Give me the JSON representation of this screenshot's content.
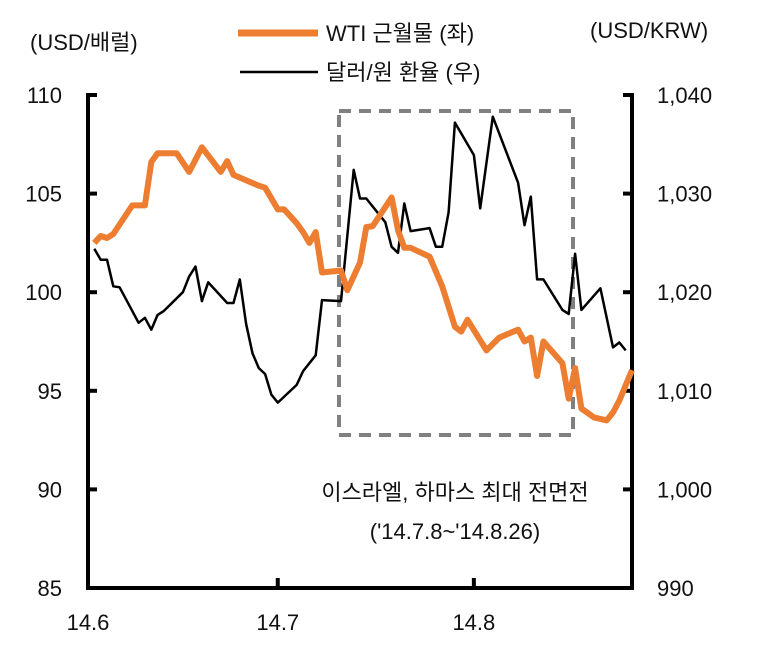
{
  "chart_data": {
    "type": "line",
    "title": "",
    "left_axis": {
      "label": "(USD/배럴)",
      "ylim": [
        85,
        110
      ],
      "ticks": [
        110,
        105,
        100,
        95,
        90,
        85
      ],
      "tick_labels": [
        "110",
        "105",
        "100",
        "95",
        "90",
        "85"
      ]
    },
    "right_axis": {
      "label": "(USD/KRW)",
      "ylim": [
        990,
        1040
      ],
      "ticks": [
        1040,
        1030,
        1020,
        1010,
        1000,
        990
      ],
      "tick_labels": [
        "1,040",
        "1,030",
        "1,020",
        "1,010",
        "1,000",
        "990"
      ]
    },
    "x_axis": {
      "xlim": [
        "2014-06-01",
        "2014-08-26"
      ],
      "ticks": [
        "2014-06-01",
        "2014-07-01",
        "2014-08-01"
      ],
      "tick_labels": [
        "14.6",
        "14.7",
        "14.8"
      ]
    },
    "grid": false,
    "legend_placement": "top-center",
    "series": [
      {
        "name": "WTI 근월물 (좌)",
        "axis": "left",
        "color": "#ED7D31",
        "x": [
          "2014-06-02",
          "2014-06-03",
          "2014-06-04",
          "2014-06-05",
          "2014-06-08",
          "2014-06-10",
          "2014-06-11",
          "2014-06-12",
          "2014-06-15",
          "2014-06-17",
          "2014-06-19",
          "2014-06-22",
          "2014-06-23",
          "2014-06-24",
          "2014-06-28",
          "2014-06-29",
          "2014-07-01",
          "2014-07-02",
          "2014-07-04",
          "2014-07-05",
          "2014-07-06",
          "2014-07-07",
          "2014-07-08",
          "2014-07-11",
          "2014-07-12",
          "2014-07-14",
          "2014-07-15",
          "2014-07-16",
          "2014-07-19",
          "2014-07-20",
          "2014-07-21",
          "2014-07-22",
          "2014-07-25",
          "2014-07-27",
          "2014-07-29",
          "2014-07-30",
          "2014-07-31",
          "2014-08-03",
          "2014-08-05",
          "2014-08-08",
          "2014-08-09",
          "2014-08-10",
          "2014-08-11",
          "2014-08-12",
          "2014-08-15",
          "2014-08-16",
          "2014-08-17",
          "2014-08-18",
          "2014-08-20",
          "2014-08-22",
          "2014-08-23",
          "2014-08-24",
          "2014-08-26"
        ],
        "values": [
          102.5,
          102.85,
          102.75,
          102.95,
          104.4,
          104.4,
          106.6,
          107.05,
          107.05,
          106.1,
          107.35,
          106.1,
          106.65,
          105.95,
          105.4,
          105.3,
          104.2,
          104.2,
          103.5,
          103.05,
          102.5,
          103.05,
          101.0,
          101.1,
          100.1,
          101.5,
          103.3,
          103.35,
          104.8,
          103.15,
          102.25,
          102.25,
          101.8,
          100.3,
          98.25,
          98.0,
          98.6,
          97.05,
          97.7,
          98.1,
          97.5,
          97.7,
          95.75,
          97.5,
          96.4,
          94.6,
          96.15,
          94.1,
          93.65,
          93.5,
          93.9,
          94.5,
          96.05
        ]
      },
      {
        "name": "달러/원 환율 (우)",
        "axis": "right",
        "color": "#000000",
        "x": [
          "2014-06-02",
          "2014-06-03",
          "2014-06-04",
          "2014-06-05",
          "2014-06-06",
          "2014-06-09",
          "2014-06-10",
          "2014-06-11",
          "2014-06-12",
          "2014-06-13",
          "2014-06-16",
          "2014-06-17",
          "2014-06-18",
          "2014-06-19",
          "2014-06-20",
          "2014-06-23",
          "2014-06-24",
          "2014-06-25",
          "2014-06-26",
          "2014-06-27",
          "2014-06-28",
          "2014-06-29",
          "2014-06-30",
          "2014-07-01",
          "2014-07-04",
          "2014-07-05",
          "2014-07-06",
          "2014-07-07",
          "2014-07-08",
          "2014-07-11",
          "2014-07-13",
          "2014-07-14",
          "2014-07-15",
          "2014-07-18",
          "2014-07-19",
          "2014-07-20",
          "2014-07-21",
          "2014-07-22",
          "2014-07-25",
          "2014-07-26",
          "2014-07-27",
          "2014-07-28",
          "2014-07-29",
          "2014-08-01",
          "2014-08-02",
          "2014-08-04",
          "2014-08-08",
          "2014-08-09",
          "2014-08-10",
          "2014-08-11",
          "2014-08-12",
          "2014-08-15",
          "2014-08-16",
          "2014-08-17",
          "2014-08-18",
          "2014-08-21",
          "2014-08-23",
          "2014-08-24",
          "2014-08-25"
        ],
        "values": [
          1024.4,
          1023.3,
          1023.3,
          1020.6,
          1020.5,
          1016.9,
          1017.4,
          1016.2,
          1017.7,
          1018.1,
          1020.0,
          1021.6,
          1022.6,
          1019.1,
          1021.0,
          1018.9,
          1018.9,
          1021.3,
          1016.8,
          1013.8,
          1012.3,
          1011.7,
          1009.6,
          1008.8,
          1010.6,
          1012.0,
          1012.8,
          1013.6,
          1019.2,
          1019.1,
          1032.4,
          1029.5,
          1029.5,
          1027.1,
          1024.6,
          1024.0,
          1029.0,
          1026.2,
          1026.5,
          1024.6,
          1024.6,
          1028.1,
          1037.2,
          1033.9,
          1028.5,
          1037.8,
          1031.1,
          1026.8,
          1029.7,
          1021.3,
          1021.3,
          1018.2,
          1017.8,
          1023.9,
          1018.2,
          1020.4,
          1014.4,
          1014.9,
          1014.1
        ]
      }
    ],
    "annotation": {
      "line1": "이스라엘, 하마스 최대 전면전",
      "line2": "('14.7.8~'14.8.26)",
      "box_color": "#808080",
      "box_style": "dashed"
    }
  }
}
